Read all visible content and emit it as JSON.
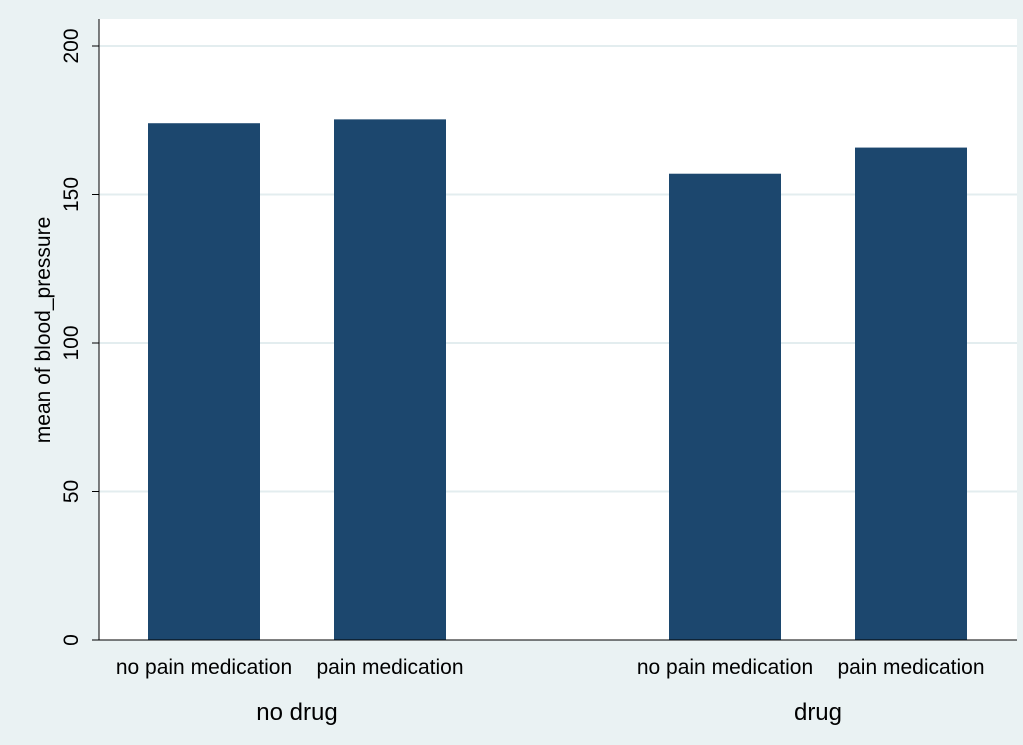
{
  "chart_data": {
    "type": "bar",
    "ylabel": "mean of blood_pressure",
    "ylim": [
      0,
      200
    ],
    "yticks": [
      0,
      50,
      100,
      150,
      200
    ],
    "grid": true,
    "groups": [
      {
        "label": "no drug",
        "bars": [
          {
            "label": "no pain medication",
            "value": 174
          },
          {
            "label": "pain medication",
            "value": 175.3
          }
        ]
      },
      {
        "label": "drug",
        "bars": [
          {
            "label": "no pain medication",
            "value": 157
          },
          {
            "label": "pain medication",
            "value": 165.8
          }
        ]
      }
    ],
    "colors": {
      "bar": "#1c476e",
      "plot_background": "#ffffff",
      "outer_background": "#eaf2f3",
      "gridline": "#e3edef",
      "axis": "#000000"
    }
  }
}
